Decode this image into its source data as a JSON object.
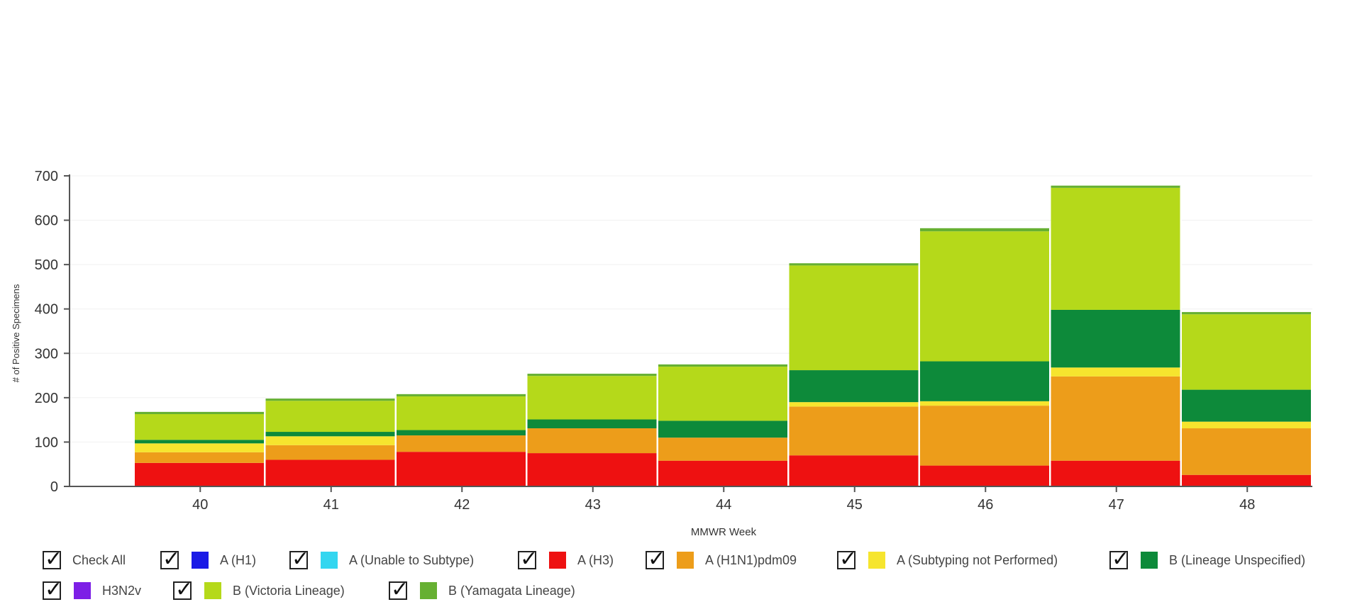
{
  "chart_data": {
    "type": "bar",
    "stacked": true,
    "title": "",
    "xlabel": "MMWR Week",
    "ylabel": "# of Positive Specimens",
    "ylim": [
      0,
      700
    ],
    "yticks": [
      0,
      100,
      200,
      300,
      400,
      500,
      600,
      700
    ],
    "categories": [
      "40",
      "41",
      "42",
      "43",
      "44",
      "45",
      "46",
      "47",
      "48"
    ],
    "series": [
      {
        "name": "A (H1)",
        "color": "#1a1ae6",
        "values": [
          0,
          0,
          0,
          0,
          0,
          0,
          0,
          0,
          0
        ]
      },
      {
        "name": "A (Unable to Subtype)",
        "color": "#33d6f0",
        "values": [
          0,
          0,
          0,
          0,
          0,
          0,
          0,
          0,
          0
        ]
      },
      {
        "name": "A (H3)",
        "color": "#ee1111",
        "values": [
          53,
          60,
          78,
          75,
          58,
          70,
          47,
          58,
          26
        ]
      },
      {
        "name": "A (H1N1)pdm09",
        "color": "#ed9d1a",
        "values": [
          24,
          33,
          37,
          56,
          52,
          110,
          135,
          190,
          105
        ]
      },
      {
        "name": "A (Subtyping not Performed)",
        "color": "#f6e52e",
        "values": [
          20,
          20,
          0,
          0,
          0,
          10,
          10,
          20,
          15
        ]
      },
      {
        "name": "B (Lineage Unspecified)",
        "color": "#0d8a3a",
        "values": [
          8,
          10,
          12,
          20,
          38,
          72,
          90,
          130,
          72
        ]
      },
      {
        "name": "H3N2v",
        "color": "#7d1fe6",
        "values": [
          0,
          0,
          0,
          0,
          0,
          0,
          0,
          0,
          0
        ]
      },
      {
        "name": "B (Victoria Lineage)",
        "color": "#b5d91a",
        "values": [
          58,
          70,
          76,
          98,
          122,
          236,
          293,
          275,
          170
        ]
      },
      {
        "name": "B (Yamagata Lineage)",
        "color": "#66b032",
        "values": [
          5,
          5,
          5,
          5,
          5,
          5,
          7,
          5,
          5
        ]
      }
    ]
  },
  "legend": {
    "check_all": "Check All",
    "items": [
      "A (H1)",
      "A (Unable to Subtype)",
      "A (H3)",
      "A (H1N1)pdm09",
      "A (Subtyping not Performed)",
      "B (Lineage Unspecified)",
      "H3N2v",
      "B (Victoria Lineage)",
      "B (Yamagata Lineage)"
    ]
  }
}
